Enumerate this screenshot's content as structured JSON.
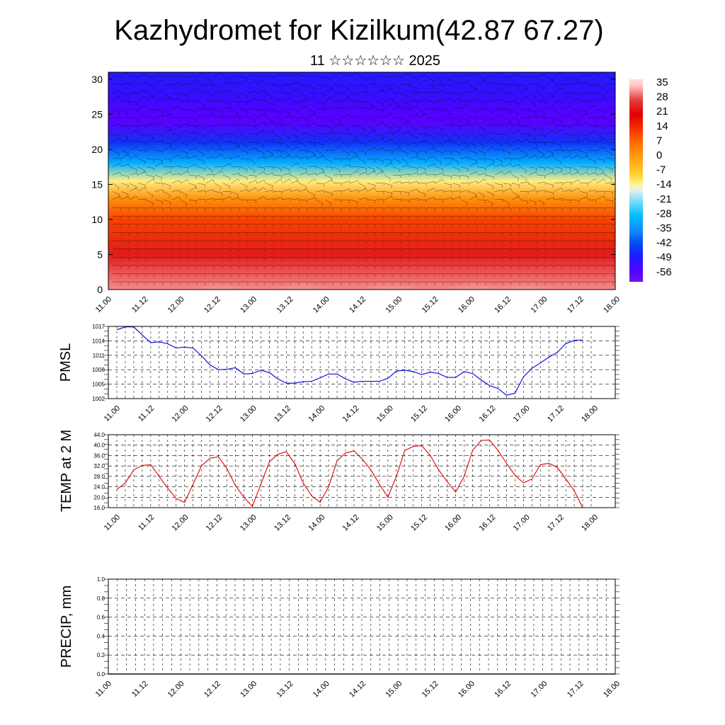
{
  "title": "Kazhydromet for Kizilkum(42.87 67.27)",
  "subtitle": "11 ☆☆☆☆☆☆ 2025",
  "time_ticks": [
    "11.00",
    "11.12",
    "12.00",
    "12.12",
    "13.00",
    "13.12",
    "14.00",
    "14.12",
    "15.00",
    "15.12",
    "16.00",
    "16.12",
    "17.00",
    "17.12",
    "18.00"
  ],
  "colors": {
    "pmsl": "#0000dd",
    "temp": "#dd0000",
    "precip": "#006400"
  },
  "chart_data": [
    {
      "type": "heatmap",
      "title": "",
      "xlabel": "",
      "ylabel": "",
      "ylim": [
        0,
        31
      ],
      "yticks": [
        0,
        5,
        10,
        15,
        20,
        25,
        30
      ],
      "colorbar_labels": [
        "35",
        "28",
        "21",
        "14",
        "7",
        "0",
        "-7",
        "-14",
        "-21",
        "-28",
        "-35",
        "-42",
        "-49",
        "-56"
      ],
      "colorbar_range": [
        -60,
        38
      ],
      "temperature_profile_by_level": [
        {
          "level": 0,
          "value": 32
        },
        {
          "level": 5,
          "value": 24
        },
        {
          "level": 10,
          "value": 12
        },
        {
          "level": 13,
          "value": 2
        },
        {
          "level": 15.5,
          "value": -12
        },
        {
          "level": 18,
          "value": -30
        },
        {
          "level": 21,
          "value": -45
        },
        {
          "level": 24,
          "value": -56
        },
        {
          "level": 27,
          "value": -52
        },
        {
          "level": 31,
          "value": -48
        }
      ],
      "wind_barbs": true
    },
    {
      "type": "line",
      "ylabel": "PMSL",
      "ylim": [
        1002,
        1017
      ],
      "yticks": [
        "1002",
        "1005",
        "1008",
        "1011",
        "1014",
        "1017"
      ],
      "grid": true,
      "x": [
        0,
        3,
        6,
        9,
        12,
        15,
        18,
        21,
        24,
        27,
        30,
        33,
        36,
        39,
        42,
        45,
        48,
        51,
        54,
        57,
        60,
        63,
        66,
        69,
        72,
        75,
        78,
        81,
        84,
        87,
        90,
        93,
        96,
        99,
        102,
        105,
        108,
        111,
        114,
        117,
        120,
        123,
        126,
        129,
        132,
        135,
        138,
        141,
        144,
        147,
        150,
        153,
        156,
        159,
        162,
        165
      ],
      "series": [
        {
          "values": [
            1016.3,
            1016.9,
            1016.9,
            1015.2,
            1013.6,
            1013.8,
            1013.4,
            1012.5,
            1012.7,
            1012.5,
            1010.9,
            1009.0,
            1008.0,
            1008.1,
            1008.4,
            1007.1,
            1007.2,
            1007.9,
            1007.4,
            1006.1,
            1005.2,
            1005.2,
            1005.5,
            1005.6,
            1006.3,
            1007.1,
            1007.1,
            1006.1,
            1005.4,
            1005.6,
            1005.6,
            1005.6,
            1006.2,
            1007.7,
            1007.9,
            1007.6,
            1007.0,
            1007.5,
            1007.2,
            1006.4,
            1006.4,
            1007.6,
            1007.2,
            1005.9,
            1004.7,
            1004.1,
            1002.7,
            1003.1,
            1006.5,
            1008.3,
            1009.4,
            1010.6,
            1011.6,
            1013.4,
            1014.1,
            1014.2
          ]
        }
      ]
    },
    {
      "type": "line",
      "ylabel": "TEMP at 2 M",
      "ylim": [
        16,
        44
      ],
      "yticks": [
        "16.0",
        "20.0",
        "24.0",
        "28.0",
        "32.0",
        "36.0",
        "40.0",
        "44.0"
      ],
      "grid": true,
      "x": [
        0,
        3,
        6,
        9,
        12,
        15,
        18,
        21,
        24,
        27,
        30,
        33,
        36,
        39,
        42,
        45,
        48,
        51,
        54,
        57,
        60,
        63,
        66,
        69,
        72,
        75,
        78,
        81,
        84,
        87,
        90,
        93,
        96,
        99,
        102,
        105,
        108,
        111,
        114,
        117,
        120,
        123,
        126,
        129,
        132,
        135,
        138,
        141,
        144,
        147,
        150,
        153,
        156,
        159,
        162,
        165
      ],
      "series": [
        {
          "values": [
            23.0,
            25.5,
            30.5,
            32.2,
            32.5,
            28.0,
            23.5,
            19.5,
            18.0,
            25.0,
            32.0,
            35.0,
            35.5,
            31.0,
            24.5,
            20.0,
            16.5,
            25.0,
            33.5,
            36.5,
            37.5,
            33.0,
            25.5,
            20.5,
            18.0,
            24.0,
            34.0,
            37.0,
            37.8,
            34.5,
            30.5,
            25.0,
            20.0,
            28.0,
            38.0,
            39.5,
            39.8,
            36.0,
            30.5,
            26.0,
            22.0,
            28.0,
            38.0,
            41.8,
            42.0,
            38.0,
            33.0,
            28.5,
            25.5,
            27.0,
            32.5,
            33.0,
            31.5,
            27.0,
            22.5,
            16.0
          ]
        }
      ]
    },
    {
      "type": "bar",
      "ylabel": "PRECIP, mm",
      "ylim": [
        0,
        1
      ],
      "yticks": [
        "0.0",
        "0.2",
        "0.4",
        "0.6",
        "0.8",
        "1.0"
      ],
      "grid": true,
      "values": [
        0
      ]
    }
  ]
}
